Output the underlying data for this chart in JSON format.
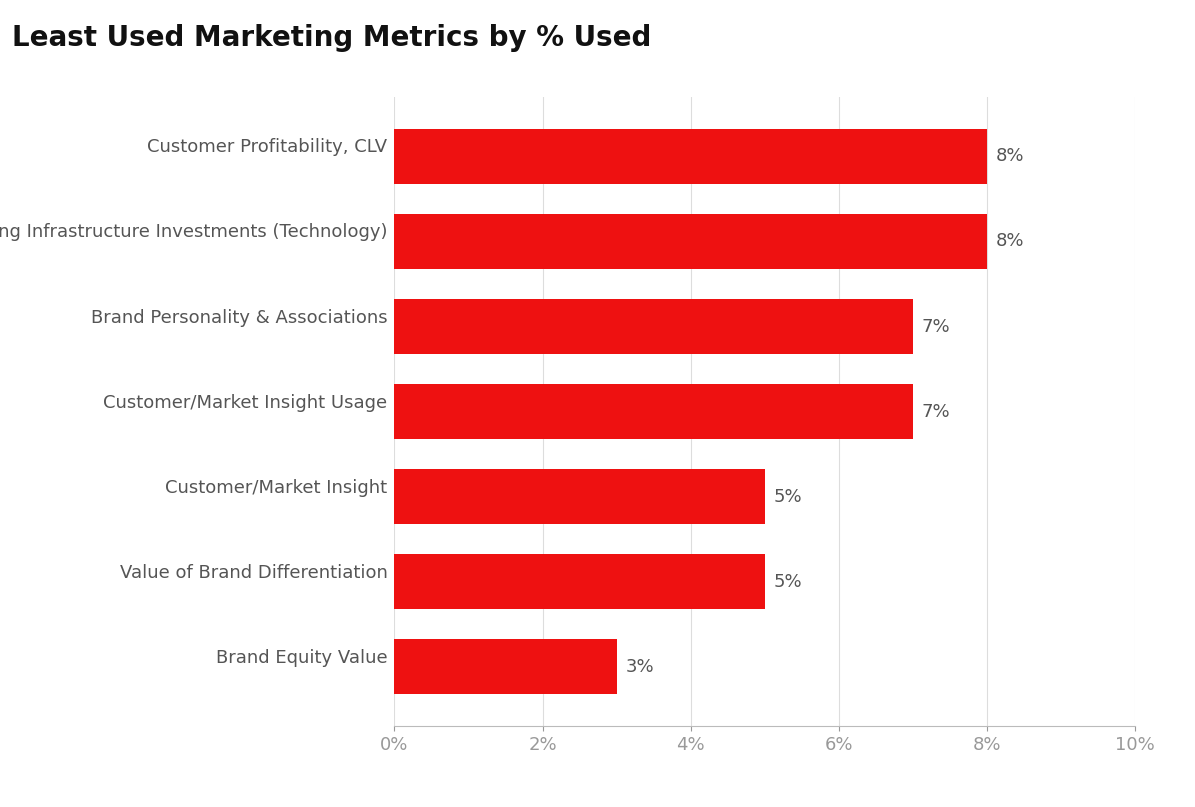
{
  "title": "Least Used Marketing Metrics by % Used",
  "categories": [
    "Brand Equity Value",
    "Value of Brand Differentiation",
    "Customer/Market Insight",
    "Customer/Market Insight Usage",
    "Brand Personality & Associations",
    "Marketing Infrastructure Investments (Technology)",
    "Customer Profitability, CLV"
  ],
  "values": [
    3,
    5,
    5,
    7,
    7,
    8,
    8
  ],
  "bar_color": "#ee1111",
  "label_color": "#555555",
  "title_color": "#111111",
  "tick_color": "#999999",
  "background_color": "#ffffff",
  "xlim": [
    0,
    10
  ],
  "xtick_values": [
    0,
    2,
    4,
    6,
    8,
    10
  ],
  "bar_height": 0.65,
  "title_fontsize": 20,
  "label_fontsize": 13,
  "tick_fontsize": 13,
  "value_label_fontsize": 13
}
